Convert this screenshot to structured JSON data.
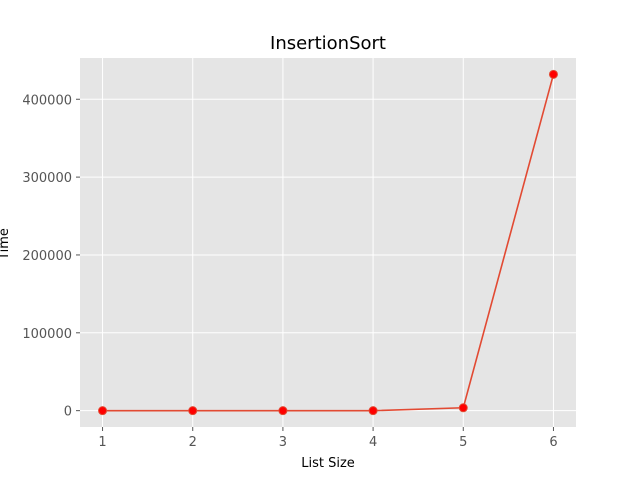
{
  "chart_data": {
    "type": "line",
    "title": "InsertionSort",
    "xlabel": "List Size",
    "ylabel": "Time",
    "x": [
      1,
      2,
      3,
      4,
      5,
      6
    ],
    "y": [
      0,
      0,
      0,
      0,
      3700,
      432000
    ],
    "xticks": [
      "1",
      "2",
      "3",
      "4",
      "5",
      "6"
    ],
    "yticks": [
      0,
      100000,
      200000,
      300000,
      400000
    ],
    "xlim": [
      0.75,
      6.25
    ],
    "ylim": [
      -21000,
      453000
    ],
    "grid": true,
    "colors": {
      "background": "#E5E5E5",
      "grid": "#FFFFFF",
      "line": "#E24A33",
      "marker": "#FF0000"
    }
  }
}
